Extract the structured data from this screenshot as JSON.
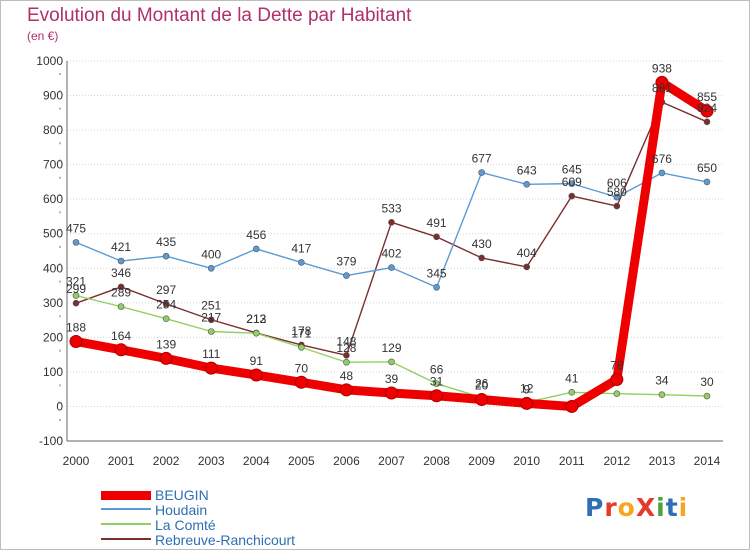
{
  "header": {
    "title": "Evolution du Montant de la Dette par Habitant",
    "unit": "(en €)"
  },
  "logo": {
    "text": "ProXiti",
    "colors": [
      "#2f6fb4",
      "#e5392a",
      "#f6a623",
      "#e5392a",
      "#4aa33b",
      "#2f6fb4",
      "#f6a623"
    ]
  },
  "chart_data": {
    "type": "line",
    "title": "Evolution du Montant de la Dette par Habitant",
    "ylabel": "(en €)",
    "xlabel": "",
    "x": [
      "2000",
      "2001",
      "2002",
      "2003",
      "2004",
      "2005",
      "2006",
      "2007",
      "2008",
      "2009",
      "2010",
      "2011",
      "2012",
      "2013",
      "2014"
    ],
    "ylim": [
      -100,
      1000
    ],
    "yticks": [
      "-100",
      "0",
      "100",
      "200",
      "300",
      "400",
      "500",
      "600",
      "700",
      "800",
      "900",
      "1000"
    ],
    "grid": "horizontal",
    "legend": "bottom-left",
    "series": [
      {
        "name": "BEUGIN",
        "color": "#ee0000",
        "values": [
          188,
          164,
          139,
          111,
          91,
          70,
          48,
          39,
          31,
          20,
          9,
          0,
          78,
          938,
          855
        ],
        "labels": [
          "188",
          "164",
          "139",
          "111",
          "91",
          "70",
          "48",
          "39",
          "31",
          "20",
          "9",
          "",
          "78",
          "938",
          "855"
        ]
      },
      {
        "name": "Houdain",
        "color": "#5b9bd5",
        "values": [
          475,
          421,
          435,
          400,
          456,
          417,
          379,
          402,
          345,
          677,
          643,
          645,
          606,
          676,
          650
        ],
        "labels": [
          "475",
          "421",
          "435",
          "400",
          "456",
          "417",
          "379",
          "402",
          "345",
          "677",
          "643",
          "645",
          "606",
          "676",
          "650"
        ]
      },
      {
        "name": "La Comté",
        "color": "#90d060",
        "values": [
          321,
          289,
          254,
          217,
          212,
          171,
          128,
          129,
          66,
          26,
          12,
          41,
          37,
          34,
          30
        ],
        "labels": [
          "321",
          "289",
          "254",
          "217",
          "212",
          "171",
          "128",
          "129",
          "66",
          "26",
          "12",
          "41",
          "",
          "34",
          "30"
        ]
      },
      {
        "name": "Rebreuve-Ranchicourt",
        "color": "#7a2e2e",
        "values": [
          299,
          346,
          297,
          251,
          213,
          178,
          148,
          533,
          491,
          430,
          404,
          609,
          580,
          881,
          824
        ],
        "labels": [
          "299",
          "346",
          "297",
          "251",
          "213",
          "178",
          "148",
          "533",
          "491",
          "430",
          "404",
          "609",
          "580",
          "881",
          "824"
        ]
      }
    ]
  }
}
